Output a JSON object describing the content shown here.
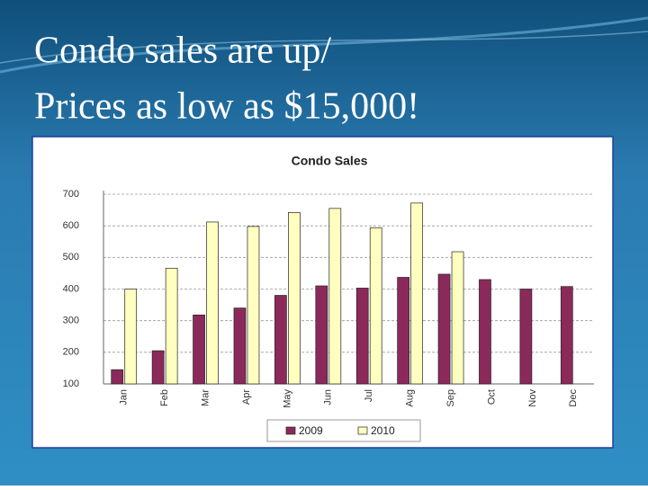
{
  "slide": {
    "title_lines": [
      "Condo sales are up/",
      "Prices as low as $15,000!"
    ]
  },
  "chart_data": {
    "type": "bar",
    "title": "Condo Sales",
    "categories": [
      "Jan",
      "Feb",
      "Mar",
      "Apr",
      "May",
      "Jun",
      "Jul",
      "Aug",
      "Sep",
      "Oct",
      "Nov",
      "Dec"
    ],
    "series": [
      {
        "name": "2009",
        "color": "#8b2a5a",
        "values": [
          145,
          205,
          318,
          340,
          380,
          410,
          403,
          437,
          447,
          430,
          400,
          408
        ]
      },
      {
        "name": "2010",
        "color": "#ffffc0",
        "values": [
          400,
          466,
          612,
          598,
          642,
          655,
          594,
          672,
          518,
          null,
          null,
          null
        ]
      }
    ],
    "ylim": [
      100,
      700
    ],
    "yticks": [
      100,
      200,
      300,
      400,
      500,
      600,
      700
    ],
    "grid": true,
    "legend": "bottom"
  }
}
